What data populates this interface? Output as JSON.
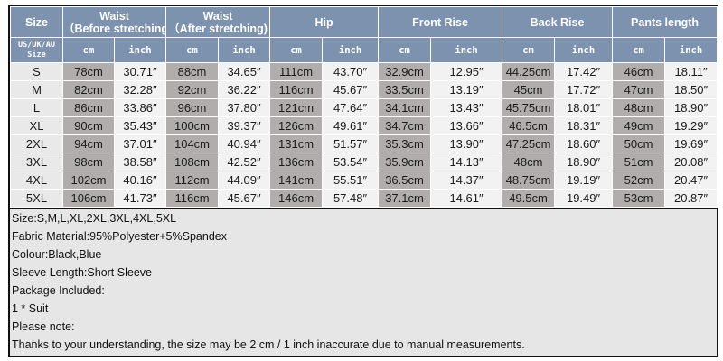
{
  "header": {
    "size": "Size",
    "groups": [
      "Waist\n(Before stretching)",
      "Waist\n(After stretching)",
      "Hip",
      "Front Rise",
      "Back Rise",
      "Pants length"
    ],
    "group_lines": [
      [
        "Waist",
        "（Before stretching)"
      ],
      [
        "Waist",
        "（After stretching)"
      ],
      [
        "Hip"
      ],
      [
        "Front Rise"
      ],
      [
        "Back Rise"
      ],
      [
        "Pants length"
      ]
    ],
    "size_sub": [
      "US/UK/AU",
      "Size"
    ],
    "cm": "cm",
    "inch": "inch"
  },
  "rows": [
    [
      "S",
      "78cm",
      "30.71″",
      "88cm",
      "34.65″",
      "111cm",
      "43.70″",
      "32.9cm",
      "12.95″",
      "44.25cm",
      "17.42″",
      "46cm",
      "18.11″"
    ],
    [
      "M",
      "82cm",
      "32.28″",
      "92cm",
      "36.22″",
      "116cm",
      "45.67″",
      "33.5cm",
      "13.19″",
      "45cm",
      "17.72″",
      "47cm",
      "18.50″"
    ],
    [
      "L",
      "86cm",
      "33.86″",
      "96cm",
      "37.80″",
      "121cm",
      "47.64″",
      "34.1cm",
      "13.43″",
      "45.75cm",
      "18.01″",
      "48cm",
      "18.90″"
    ],
    [
      "XL",
      "90cm",
      "35.43″",
      "100cm",
      "39.37″",
      "126cm",
      "49.61″",
      "34.7cm",
      "13.66″",
      "46.5cm",
      "18.31″",
      "49cm",
      "19.29″"
    ],
    [
      "2XL",
      "94cm",
      "37.01″",
      "104cm",
      "40.94″",
      "131cm",
      "51.57″",
      "35.3cm",
      "13.90″",
      "47.25cm",
      "18.60″",
      "50cm",
      "19.69″"
    ],
    [
      "3XL",
      "98cm",
      "38.58″",
      "108cm",
      "42.52″",
      "136cm",
      "53.54″",
      "35.9cm",
      "14.13″",
      "48cm",
      "18.90″",
      "51cm",
      "20.08″"
    ],
    [
      "4XL",
      "102cm",
      "40.16″",
      "112cm",
      "44.09″",
      "141cm",
      "55.51″",
      "36.5cm",
      "14.37″",
      "48.75cm",
      "19.19″",
      "52cm",
      "20.47″"
    ],
    [
      "5XL",
      "106cm",
      "41.73″",
      "116cm",
      "45.67″",
      "146cm",
      "57.48″",
      "37.1cm",
      "14.61″",
      "49.5cm",
      "19.49″",
      "53cm",
      "20.87″"
    ]
  ],
  "notes": [
    "Size:S,M,L,XL,2XL,3XL,4XL,5XL",
    "Fabric Material:95%Polyester+5%Spandex",
    "Colour:Black,Blue",
    "Sleeve Length:Short Sleeve",
    "Package Included:",
    "1 * Suit",
    "Please note:",
    "Thanks to your understanding, the size may be 2 cm / 1 inch inaccurate due to manual measurements."
  ],
  "colors": {
    "header": "#7d92ae",
    "cm_cell": "#b1adad",
    "inch_cell": "#f2f2f2",
    "notes_bg": "#e6e6e6"
  }
}
